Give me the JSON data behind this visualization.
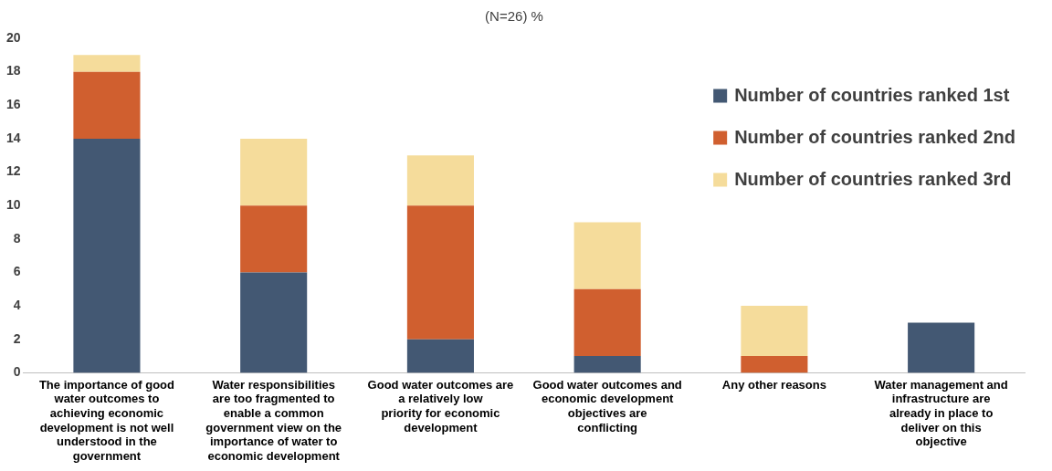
{
  "chart_data": {
    "type": "bar",
    "title": "(N=26) %",
    "stacked": true,
    "categories": [
      "The importance of good water outcomes to achieving economic development is not well understood in the government",
      "Water responsibilities are too fragmented to enable a common government view on the importance of water to economic development",
      "Good water outcomes are a relatively low priority for economic development",
      "Good water outcomes and economic development objectives are conflicting",
      "Any other reasons",
      "Water management and infrastructure are already in place to deliver on this objective"
    ],
    "series": [
      {
        "name": "Number of countries ranked 1st",
        "color": "#435873",
        "values": [
          14,
          6,
          2,
          1,
          0,
          3
        ]
      },
      {
        "name": "Number of countries ranked 2nd",
        "color": "#d05f2f",
        "values": [
          4,
          4,
          8,
          4,
          1,
          0
        ]
      },
      {
        "name": "Number of countries ranked 3rd",
        "color": "#f5dc9b",
        "values": [
          1,
          4,
          3,
          4,
          3,
          0
        ]
      }
    ],
    "ylim": [
      0,
      20
    ],
    "yticks": [
      0,
      2,
      4,
      6,
      8,
      10,
      12,
      14,
      16,
      18,
      20
    ],
    "grid": false,
    "legend": "top right"
  }
}
